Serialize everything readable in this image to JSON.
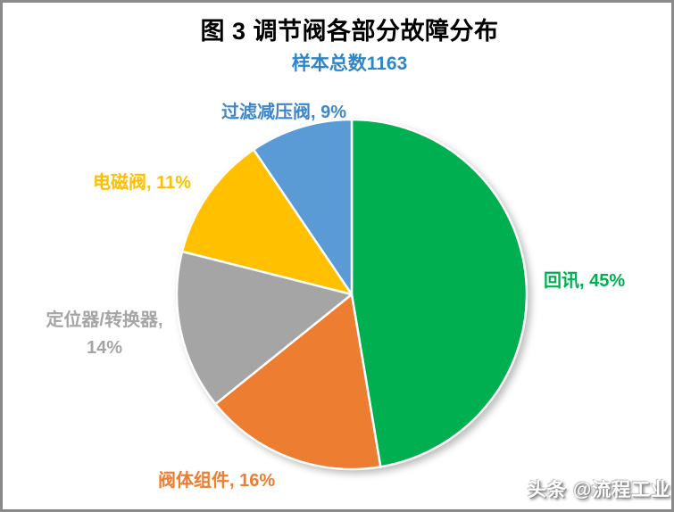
{
  "title": {
    "text": "图 3 调节阀各部分故障分布",
    "color": "#000000"
  },
  "subtitle": {
    "text": "样本总数1163",
    "color": "#2E86C8"
  },
  "watermark": {
    "text": "头条 @流程工业"
  },
  "frame": {
    "border_color": "#8a8a8a",
    "background": "#ffffff"
  },
  "chart_data": {
    "type": "pie",
    "title": "图 3 调节阀各部分故障分布",
    "subtitle": "样本总数1163",
    "total_samples": 1163,
    "start_angle": "top",
    "direction": "clockwise",
    "legend": "none",
    "slices": [
      {
        "name": "回讯",
        "pct": 45,
        "color": "#00AF50",
        "label_color": "#00B050",
        "label": "回讯, 45%"
      },
      {
        "name": "阀体组件",
        "pct": 16,
        "color": "#ED7D31",
        "label_color": "#ED7D31",
        "label": "阀体组件, 16%"
      },
      {
        "name": "定位器/转换器",
        "pct": 14,
        "color": "#A5A5A5",
        "label_color": "#A5A5A5",
        "label": "定位器/转换器,\n14%"
      },
      {
        "name": "电磁阀",
        "pct": 11,
        "color": "#FFC000",
        "label_color": "#FFC000",
        "label": "电磁阀, 11%"
      },
      {
        "name": "过滤减压阀",
        "pct": 9,
        "color": "#5B9BD5",
        "label_color": "#3E86C8",
        "label": "过滤减压阀, 9%"
      }
    ]
  }
}
